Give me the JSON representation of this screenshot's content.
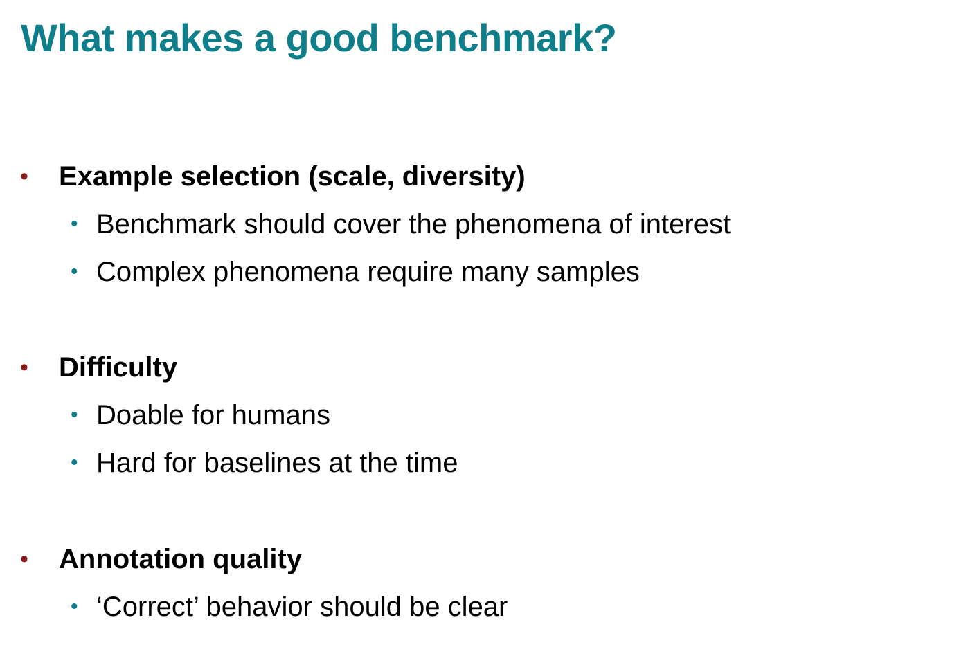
{
  "slide": {
    "title": "What makes a good benchmark?",
    "colors": {
      "title": "#0e7f8a",
      "primary_bullet": "#8b1a1a",
      "secondary_bullet": "#0e7f8a"
    },
    "bullet_glyph": "•",
    "sections": [
      {
        "heading": "Example selection (scale, diversity)",
        "items": [
          "Benchmark should cover the phenomena of interest",
          "Complex phenomena require many samples"
        ]
      },
      {
        "heading": "Difficulty",
        "items": [
          "Doable for humans",
          "Hard for baselines at the time"
        ]
      },
      {
        "heading": "Annotation quality",
        "items": [
          "‘Correct’ behavior should be clear"
        ]
      }
    ]
  }
}
